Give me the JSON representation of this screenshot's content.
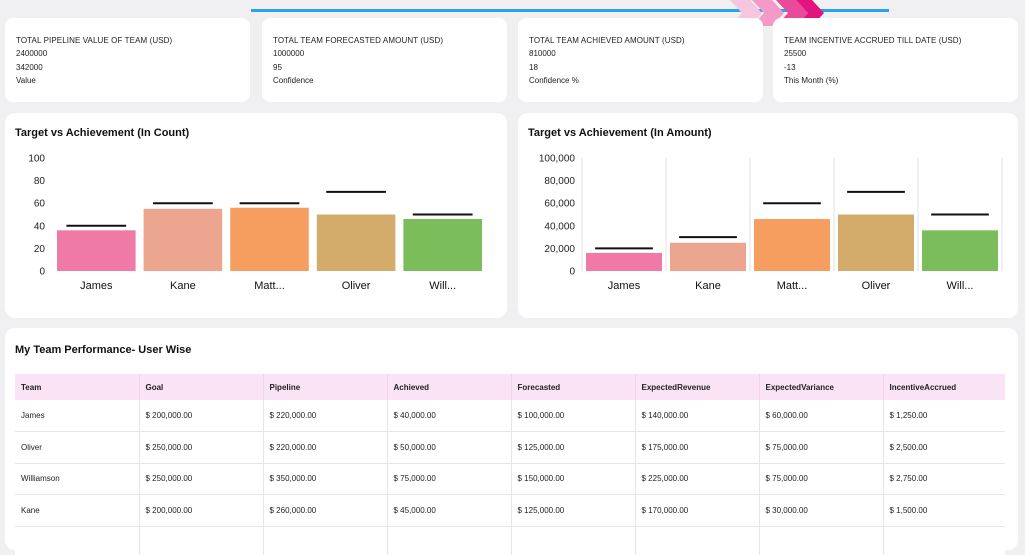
{
  "kpis": [
    {
      "title": "TOTAL PIPELINE VALUE OF TEAM (USD)",
      "value": "2400000",
      "sub_value": "342000",
      "sub_label": "Value"
    },
    {
      "title": "TOTAL TEAM FORECASTED AMOUNT (USD)",
      "value": "1000000",
      "sub_value": "95",
      "sub_label": "Confidence"
    },
    {
      "title": "TOTAL TEAM ACHIEVED AMOUNT (USD)",
      "value": "810000",
      "sub_value": "18",
      "sub_label": "Confidence %"
    },
    {
      "title": "TEAM INCENTIVE ACCRUED TILL DATE (USD)",
      "value": "25500",
      "sub_value": "-13",
      "sub_label": "This Month (%)"
    }
  ],
  "colors": {
    "bars": [
      "#f07aa6",
      "#eca58f",
      "#f69e60",
      "#d3ac6b",
      "#7bbd5a"
    ],
    "target_marker": "#111111",
    "table_header": "#fbe3f6",
    "accent_line": "#2aa4e8"
  },
  "chart_data": [
    {
      "type": "bar",
      "title": "Target vs Achievement (In Count)",
      "categories": [
        "James",
        "Kane",
        "Matt...",
        "Oliver",
        "Will..."
      ],
      "series": [
        {
          "name": "",
          "values": [
            36,
            55,
            56,
            50,
            46
          ]
        },
        {
          "name": "",
          "values": [
            40,
            60,
            60,
            70,
            50
          ]
        }
      ],
      "yticks": [
        "0",
        "20",
        "40",
        "60",
        "80",
        "100"
      ],
      "ylim": [
        0,
        100
      ],
      "grid": false
    },
    {
      "type": "bar",
      "title": "Target vs Achievement (In Amount)",
      "categories": [
        "James",
        "Kane",
        "Matt...",
        "Oliver",
        "Will..."
      ],
      "series": [
        {
          "name": "",
          "values": [
            16000,
            25000,
            46000,
            50000,
            36000
          ]
        },
        {
          "name": "",
          "values": [
            20000,
            30000,
            60000,
            70000,
            50000
          ]
        }
      ],
      "yticks": [
        "0",
        "20,000",
        "40,000",
        "60,000",
        "80,000",
        "100,000"
      ],
      "ylim": [
        0,
        100000
      ],
      "grid": true
    }
  ],
  "table": {
    "title": "My Team Performance- User Wise",
    "columns": [
      "Team",
      "Goal",
      "Pipeline",
      "Achieved",
      "Forecasted",
      "ExpectedRevenue",
      "ExpectedVariance",
      "IncentiveAccrued"
    ],
    "rows": [
      [
        "James",
        "$ 200,000.00",
        "$ 220,000.00",
        "$ 40,000.00",
        "$ 100,000.00",
        "$ 140,000.00",
        "$ 60,000.00",
        "$ 1,250.00"
      ],
      [
        "Oliver",
        "$ 250,000.00",
        "$ 220,000.00",
        "$ 50,000.00",
        "$ 125,000.00",
        "$ 175,000.00",
        "$ 75,000.00",
        "$ 2,500.00"
      ],
      [
        "Williamson",
        "$ 250,000.00",
        "$ 350,000.00",
        "$ 75,000.00",
        "$ 150,000.00",
        "$ 225,000.00",
        "$ 75,000.00",
        "$ 2,750.00"
      ],
      [
        "Kane",
        "$ 200,000.00",
        "$ 260,000.00",
        "$ 45,000.00",
        "$ 125,000.00",
        "$ 170,000.00",
        "$ 30,000.00",
        "$ 1,500.00"
      ]
    ]
  }
}
